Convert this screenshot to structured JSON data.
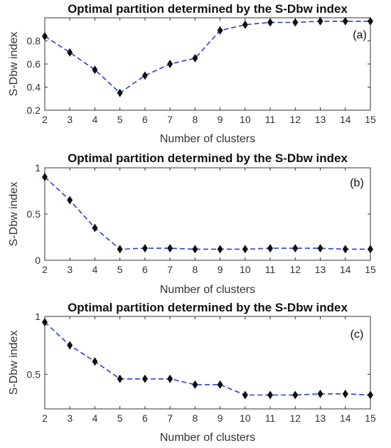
{
  "chart_data": [
    {
      "type": "line",
      "title": "Optimal partition determined by the S-Dbw index",
      "xlabel": "Number of clusters",
      "ylabel": "S-Dbw index",
      "panel_label": "(a)",
      "x": [
        2,
        3,
        4,
        5,
        6,
        7,
        8,
        9,
        10,
        11,
        12,
        13,
        14,
        15
      ],
      "xlim": [
        2,
        15
      ],
      "ylim": [
        0.2,
        1.0
      ],
      "yticks": [
        0.2,
        0.4,
        0.6,
        0.8
      ],
      "ytick_labels": [
        "0.2",
        "0.4",
        "0.6",
        "0.8"
      ],
      "grid": false,
      "series": [
        {
          "values": [
            0.84,
            0.7,
            0.55,
            0.35,
            0.5,
            0.6,
            0.65,
            0.89,
            0.94,
            0.96,
            0.96,
            0.97,
            0.97,
            0.97
          ],
          "line_color": "#2b3fcf",
          "marker_color": "#111111",
          "marker": "diamond"
        }
      ]
    },
    {
      "type": "line",
      "title": "Optimal partition determined by the S-Dbw index",
      "xlabel": "Number of clusters",
      "ylabel": "S-Dbw index",
      "panel_label": "(b)",
      "x": [
        2,
        3,
        4,
        5,
        6,
        7,
        8,
        9,
        10,
        11,
        12,
        13,
        14,
        15
      ],
      "xlim": [
        2,
        15
      ],
      "ylim": [
        0,
        1
      ],
      "yticks": [
        0,
        0.5,
        1
      ],
      "ytick_labels": [
        "0",
        "0.5",
        "1"
      ],
      "grid": false,
      "series": [
        {
          "values": [
            0.9,
            0.65,
            0.35,
            0.12,
            0.13,
            0.13,
            0.12,
            0.12,
            0.12,
            0.13,
            0.13,
            0.13,
            0.12,
            0.12
          ],
          "line_color": "#2b3fcf",
          "marker_color": "#111111",
          "marker": "diamond"
        }
      ]
    },
    {
      "type": "line",
      "title": "Optimal partition determined by the S-Dbw index",
      "xlabel": "Number of clusters",
      "ylabel": "S-Dbw index",
      "panel_label": "(c)",
      "x": [
        2,
        3,
        4,
        5,
        6,
        7,
        8,
        9,
        10,
        11,
        12,
        13,
        14,
        15
      ],
      "xlim": [
        2,
        15
      ],
      "ylim": [
        0.2,
        1.0
      ],
      "yticks": [
        0.5,
        1
      ],
      "ytick_labels": [
        "0.5",
        "1"
      ],
      "grid": false,
      "series": [
        {
          "values": [
            0.95,
            0.75,
            0.61,
            0.46,
            0.46,
            0.46,
            0.41,
            0.41,
            0.32,
            0.32,
            0.32,
            0.33,
            0.33,
            0.32
          ],
          "line_color": "#2b3fcf",
          "marker_color": "#111111",
          "marker": "diamond"
        }
      ]
    }
  ]
}
